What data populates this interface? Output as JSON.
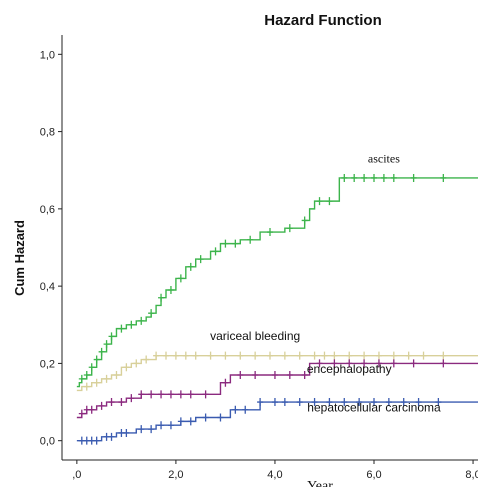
{
  "chart_data": {
    "type": "line",
    "title": "Hazard Function",
    "xlabel": "Year",
    "ylabel": "Cum Hazard",
    "xlim": [
      -0.3,
      8.1
    ],
    "ylim": [
      -0.05,
      1.05
    ],
    "xticks": [
      0,
      2,
      4,
      6,
      8
    ],
    "xtick_labels": [
      ",0",
      "2,0",
      "4,0",
      "6,0",
      "8,0"
    ],
    "yticks": [
      0,
      0.2,
      0.4,
      0.6,
      0.8,
      1.0
    ],
    "ytick_labels": [
      "0,0",
      "0,2",
      "0,4",
      "0,6",
      "0,8",
      "1,0"
    ],
    "grid": false,
    "legend": "none",
    "series": [
      {
        "name": "ascites",
        "color": "#3cb44b",
        "steps": [
          [
            0,
            0.14
          ],
          [
            0.05,
            0.15
          ],
          [
            0.1,
            0.16
          ],
          [
            0.2,
            0.17
          ],
          [
            0.3,
            0.19
          ],
          [
            0.4,
            0.21
          ],
          [
            0.5,
            0.23
          ],
          [
            0.6,
            0.25
          ],
          [
            0.7,
            0.27
          ],
          [
            0.8,
            0.29
          ],
          [
            1.0,
            0.3
          ],
          [
            1.2,
            0.31
          ],
          [
            1.4,
            0.32
          ],
          [
            1.5,
            0.33
          ],
          [
            1.6,
            0.35
          ],
          [
            1.7,
            0.37
          ],
          [
            1.8,
            0.39
          ],
          [
            2.0,
            0.42
          ],
          [
            2.2,
            0.45
          ],
          [
            2.4,
            0.47
          ],
          [
            2.7,
            0.49
          ],
          [
            2.9,
            0.51
          ],
          [
            3.3,
            0.52
          ],
          [
            3.7,
            0.54
          ],
          [
            4.2,
            0.55
          ],
          [
            4.6,
            0.57
          ],
          [
            4.7,
            0.6
          ],
          [
            4.8,
            0.62
          ],
          [
            5.3,
            0.68
          ],
          [
            8.1,
            0.68
          ]
        ],
        "censors": [
          0.1,
          0.2,
          0.3,
          0.4,
          0.5,
          0.6,
          0.7,
          0.9,
          1.1,
          1.3,
          1.5,
          1.7,
          1.9,
          2.1,
          2.3,
          2.5,
          2.8,
          3.0,
          3.2,
          3.5,
          3.9,
          4.3,
          4.6,
          4.9,
          5.1,
          5.4,
          5.6,
          5.8,
          6.0,
          6.2,
          6.4,
          6.8,
          7.4
        ]
      },
      {
        "name": "variceal bleeding",
        "color": "#d8d09a",
        "steps": [
          [
            0,
            0.13
          ],
          [
            0.1,
            0.14
          ],
          [
            0.3,
            0.15
          ],
          [
            0.5,
            0.16
          ],
          [
            0.7,
            0.17
          ],
          [
            0.9,
            0.19
          ],
          [
            1.1,
            0.2
          ],
          [
            1.3,
            0.21
          ],
          [
            1.6,
            0.22
          ],
          [
            8.1,
            0.22
          ]
        ],
        "censors": [
          0.2,
          0.4,
          0.6,
          0.8,
          1.0,
          1.2,
          1.4,
          1.6,
          1.8,
          2.0,
          2.2,
          2.4,
          2.7,
          3.0,
          3.3,
          3.6,
          3.9,
          4.2,
          4.5,
          4.8,
          5.0,
          5.2,
          5.5,
          5.8,
          6.1,
          6.4,
          6.7,
          7.0,
          7.4
        ]
      },
      {
        "name": "encephalopathy",
        "color": "#8b2a7f",
        "steps": [
          [
            0,
            0.06
          ],
          [
            0.1,
            0.07
          ],
          [
            0.2,
            0.08
          ],
          [
            0.4,
            0.09
          ],
          [
            0.6,
            0.1
          ],
          [
            1.0,
            0.11
          ],
          [
            1.3,
            0.12
          ],
          [
            2.9,
            0.15
          ],
          [
            3.1,
            0.17
          ],
          [
            4.7,
            0.2
          ],
          [
            8.1,
            0.2
          ]
        ],
        "censors": [
          0.1,
          0.2,
          0.3,
          0.5,
          0.7,
          0.9,
          1.1,
          1.3,
          1.5,
          1.7,
          1.9,
          2.1,
          2.3,
          2.6,
          3.0,
          3.3,
          3.6,
          4.0,
          4.3,
          4.6,
          4.9,
          5.2,
          5.5,
          5.8,
          6.1,
          6.4,
          6.8,
          7.4
        ]
      },
      {
        "name": "hepatocellular carcinoma",
        "color": "#3a5bb0",
        "steps": [
          [
            0,
            0.0
          ],
          [
            0.5,
            0.01
          ],
          [
            0.8,
            0.02
          ],
          [
            1.2,
            0.03
          ],
          [
            1.6,
            0.04
          ],
          [
            2.1,
            0.05
          ],
          [
            2.4,
            0.06
          ],
          [
            3.1,
            0.08
          ],
          [
            3.7,
            0.1
          ],
          [
            8.1,
            0.1
          ]
        ],
        "censors": [
          0.1,
          0.2,
          0.3,
          0.4,
          0.6,
          0.7,
          0.9,
          1.0,
          1.3,
          1.5,
          1.7,
          1.9,
          2.1,
          2.3,
          2.6,
          2.9,
          3.2,
          3.4,
          3.7,
          4.0,
          4.2,
          4.5,
          4.8,
          5.1,
          5.4,
          5.7,
          6.0,
          6.3,
          6.6,
          6.9,
          7.3
        ]
      }
    ],
    "annotations": [
      {
        "text": "ascites",
        "x": 6.2,
        "y": 0.72,
        "font": "serif"
      },
      {
        "text": "variceal bleeding",
        "x": 3.6,
        "y": 0.26,
        "font": "sans"
      },
      {
        "text": "encephalopathy",
        "x": 5.5,
        "y": 0.175,
        "font": "sans"
      },
      {
        "text": "hepatocellular carcinoma",
        "x": 6.0,
        "y": 0.075,
        "font": "sans"
      }
    ]
  }
}
